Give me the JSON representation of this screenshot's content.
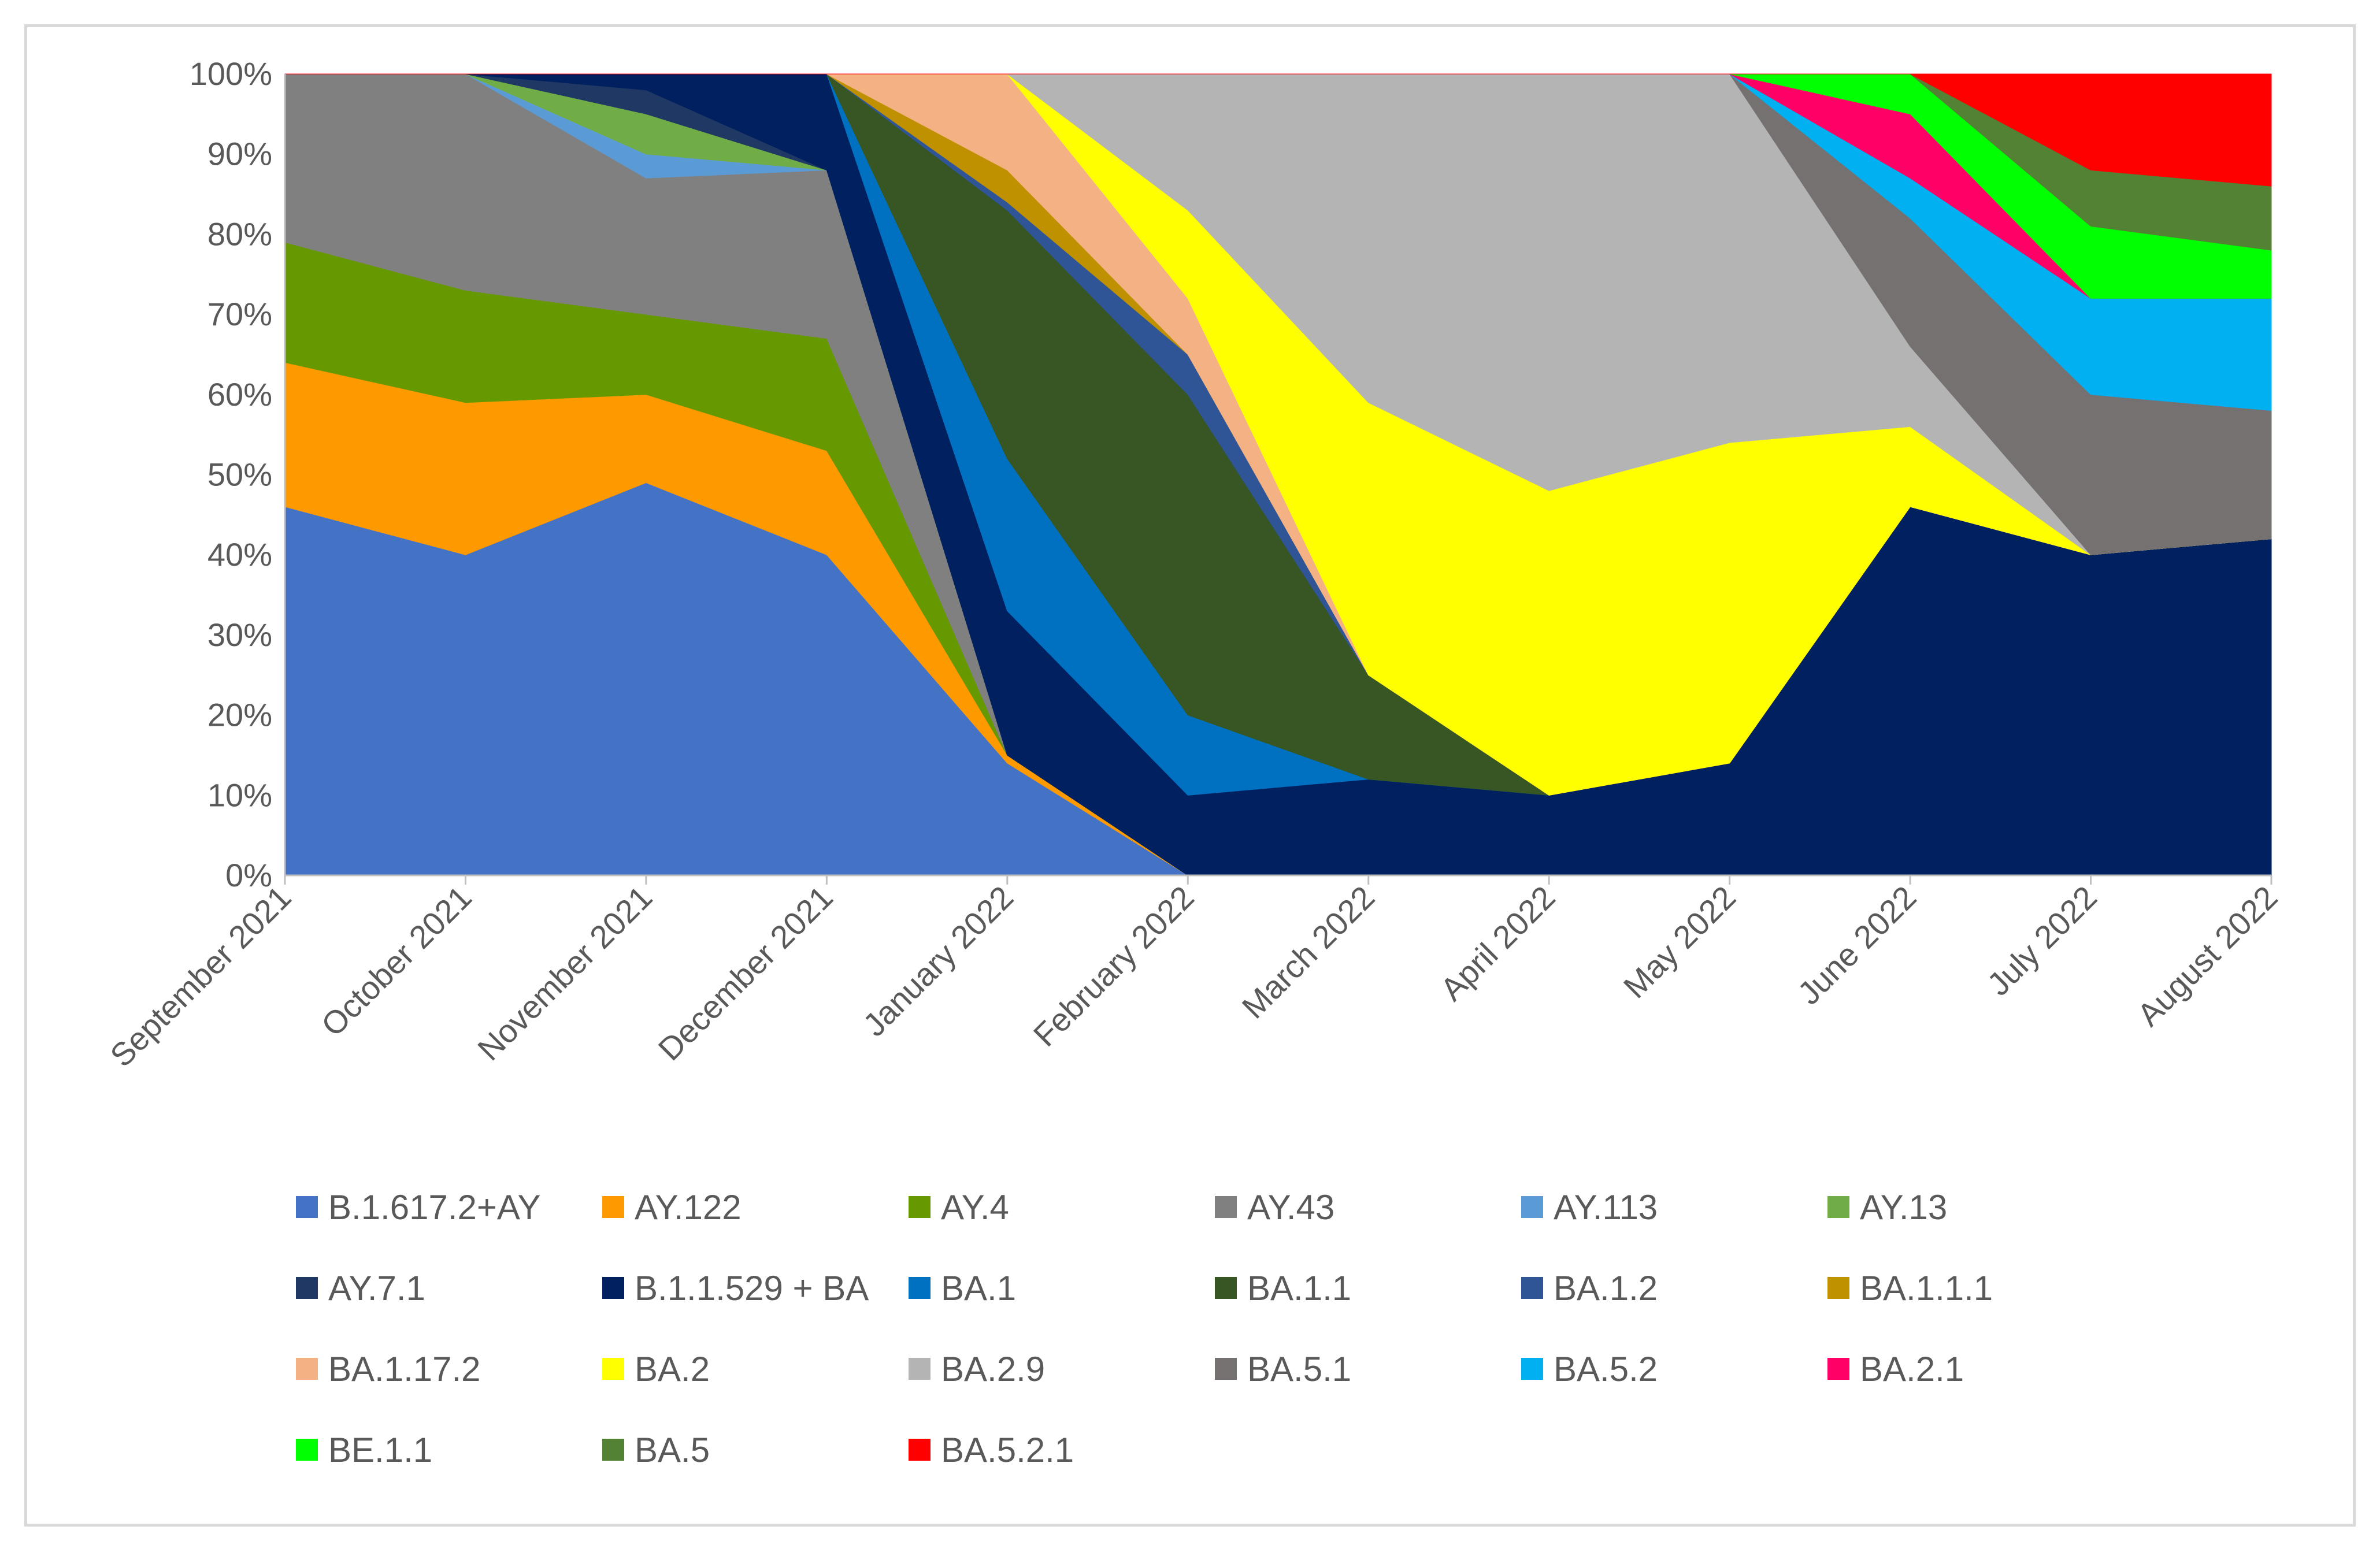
{
  "chart_data": {
    "type": "area",
    "stacked": true,
    "normalized": true,
    "title": "",
    "xlabel": "",
    "ylabel": "",
    "ylim": [
      0,
      100
    ],
    "yticks": [
      "0%",
      "10%",
      "20%",
      "30%",
      "40%",
      "50%",
      "60%",
      "70%",
      "80%",
      "90%",
      "100%"
    ],
    "grid": false,
    "legend_position": "bottom",
    "categories": [
      "September 2021",
      "October 2021",
      "November 2021",
      "December 2021",
      "January 2022",
      "February 2022",
      "March 2022",
      "April 2022",
      "May 2022",
      "June 2022",
      "July 2022",
      "August 2022"
    ],
    "series": [
      {
        "name": "B.1.617.2+AY",
        "color": "#4472C4",
        "values": [
          46,
          40,
          49,
          40,
          14,
          0,
          0,
          0,
          0,
          0,
          0,
          0
        ]
      },
      {
        "name": "AY.122",
        "color": "#FF9900",
        "values": [
          18,
          19,
          11,
          13,
          1,
          0,
          0,
          0,
          0,
          0,
          0,
          0
        ]
      },
      {
        "name": "AY.4",
        "color": "#669900",
        "values": [
          15,
          14,
          10,
          14,
          0,
          0,
          0,
          0,
          0,
          0,
          0,
          0
        ]
      },
      {
        "name": "AY.43",
        "color": "#808080",
        "values": [
          21,
          27,
          17,
          21,
          0,
          0,
          0,
          0,
          0,
          0,
          0,
          0
        ]
      },
      {
        "name": "AY.113",
        "color": "#5B9BD5",
        "values": [
          0,
          0,
          3,
          0,
          0,
          0,
          0,
          0,
          0,
          0,
          0,
          0
        ]
      },
      {
        "name": "AY.13",
        "color": "#70AD47",
        "values": [
          0,
          0,
          5,
          0,
          0,
          0,
          0,
          0,
          0,
          0,
          0,
          0
        ]
      },
      {
        "name": "AY.7.1",
        "color": "#203864",
        "values": [
          0,
          0,
          3,
          0,
          0,
          0,
          0,
          0,
          0,
          0,
          0,
          0
        ]
      },
      {
        "name": "B.1.1.529 + BA",
        "color": "#002060",
        "values": [
          0,
          0,
          2,
          12,
          18,
          10,
          12,
          10,
          14,
          46,
          40,
          42
        ]
      },
      {
        "name": "BA.1",
        "color": "#0070C0",
        "values": [
          0,
          0,
          0,
          0,
          19,
          10,
          0,
          0,
          0,
          0,
          0,
          0
        ]
      },
      {
        "name": "BA.1.1",
        "color": "#375623",
        "values": [
          0,
          0,
          0,
          0,
          31,
          40,
          13,
          0,
          0,
          0,
          0,
          0
        ]
      },
      {
        "name": "BA.1.2",
        "color": "#2F5597",
        "values": [
          0,
          0,
          0,
          0,
          1,
          5,
          0,
          0,
          0,
          0,
          0,
          0
        ]
      },
      {
        "name": "BA.1.1.1",
        "color": "#BF9000",
        "values": [
          0,
          0,
          0,
          0,
          4,
          0,
          0,
          0,
          0,
          0,
          0,
          0
        ]
      },
      {
        "name": "BA.1.17.2",
        "color": "#F4B183",
        "values": [
          0,
          0,
          0,
          0,
          12,
          7,
          0,
          0,
          0,
          0,
          0,
          0
        ]
      },
      {
        "name": "BA.2",
        "color": "#FFFF00",
        "values": [
          0,
          0,
          0,
          0,
          0,
          11,
          34,
          38,
          40,
          10,
          0,
          0
        ]
      },
      {
        "name": "BA.2.9",
        "color": "#B4B4B4",
        "values": [
          0,
          0,
          0,
          0,
          0,
          17,
          41,
          52,
          46,
          10,
          0,
          0
        ]
      },
      {
        "name": "BA.5.1",
        "color": "#767171",
        "values": [
          0,
          0,
          0,
          0,
          0,
          0,
          0,
          0,
          0,
          16,
          20,
          16
        ]
      },
      {
        "name": "BA.5.2",
        "color": "#00B0F0",
        "values": [
          0,
          0,
          0,
          0,
          0,
          0,
          0,
          0,
          0,
          5,
          12,
          14
        ]
      },
      {
        "name": "BA.2.1",
        "color": "#FF0066",
        "values": [
          0,
          0,
          0,
          0,
          0,
          0,
          0,
          0,
          0,
          8,
          0,
          0
        ]
      },
      {
        "name": "BE.1.1",
        "color": "#00FF00",
        "values": [
          0,
          0,
          0,
          0,
          0,
          0,
          0,
          0,
          0,
          5,
          9,
          6
        ]
      },
      {
        "name": "BA.5",
        "color": "#548235",
        "values": [
          0,
          0,
          0,
          0,
          0,
          0,
          0,
          0,
          0,
          0,
          7,
          8
        ]
      },
      {
        "name": "BA.5.2.1",
        "color": "#FF0000",
        "values": [
          0,
          0,
          0,
          0,
          0,
          0,
          0,
          0,
          0,
          0,
          12,
          14
        ]
      }
    ]
  }
}
